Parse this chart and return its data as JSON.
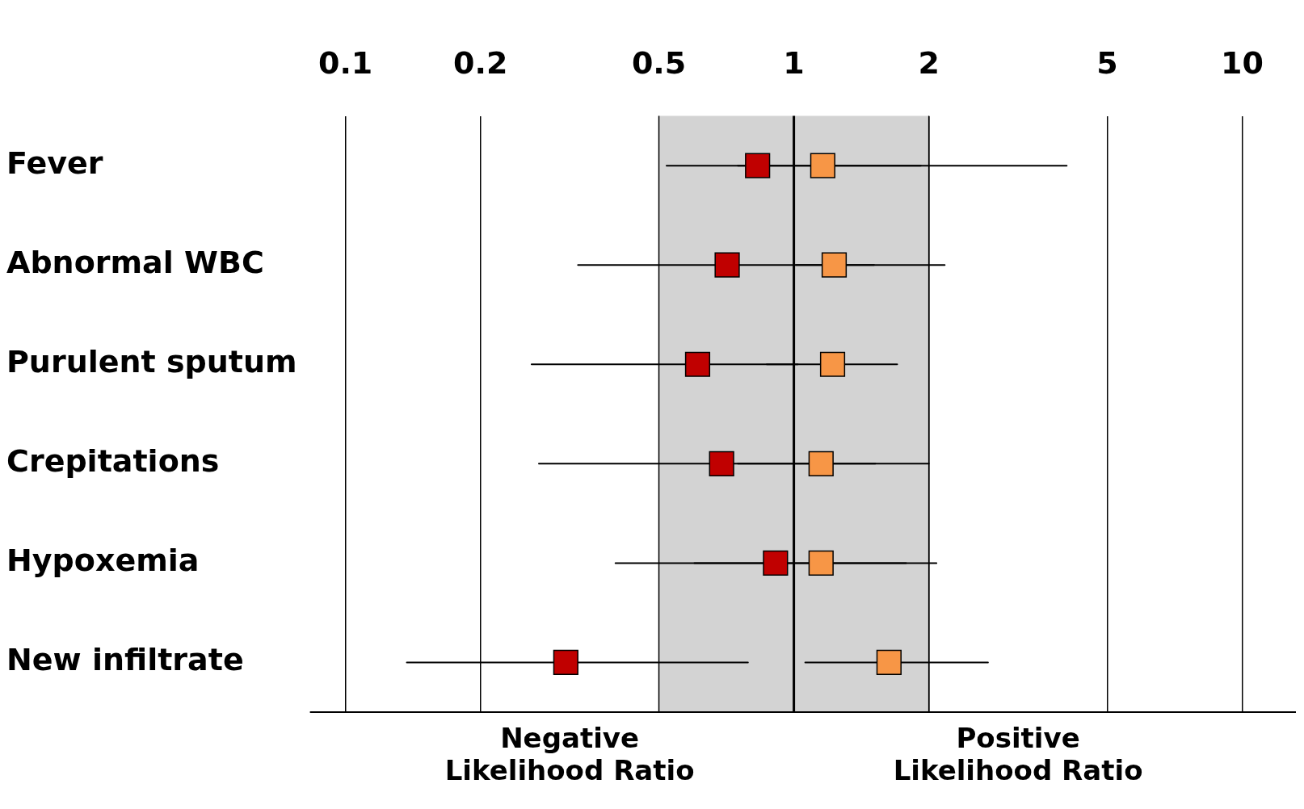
{
  "chart_data": {
    "type": "scatter",
    "orientation": "horizontal",
    "categories": [
      "Fever",
      "Abnormal WBC",
      "Purulent sputum",
      "Crepitations",
      "Hypoxemia",
      "New infiltrate"
    ],
    "series": [
      {
        "color": "#c00000",
        "values": [
          0.83,
          0.71,
          0.61,
          0.69,
          0.91,
          0.31
        ],
        "errors": [
          [
            0.52,
            1.92
          ],
          [
            0.33,
            1.51
          ],
          [
            0.26,
            1.02
          ],
          [
            0.27,
            1.52
          ],
          [
            0.4,
            1.78
          ],
          [
            0.137,
            0.79
          ]
        ]
      },
      {
        "color": "#f79646",
        "values": [
          1.16,
          1.23,
          1.22,
          1.15,
          1.15,
          1.63
        ],
        "errors": [
          [
            0.75,
            4.06
          ],
          [
            1.01,
            2.17
          ],
          [
            0.87,
            1.7
          ],
          [
            0.75,
            2.0
          ],
          [
            0.6,
            2.08
          ],
          [
            1.06,
            2.71
          ]
        ]
      }
    ],
    "log": "x",
    "xlim": [
      0.1,
      10
    ],
    "xticks": [
      0.1,
      0.2,
      0.5,
      1,
      2,
      5,
      10
    ],
    "grid": "x",
    "marker": "square",
    "bands": [
      {
        "axis": "x",
        "from": 0.5,
        "to": 2,
        "color": "#d3d3d3"
      }
    ],
    "ref_lines": [
      {
        "axis": "x",
        "value": 1,
        "color": "#000000"
      }
    ],
    "annotations": [
      "Negative\nLikelihood Ratio",
      "Positive\nLikelihood Ratio"
    ]
  }
}
